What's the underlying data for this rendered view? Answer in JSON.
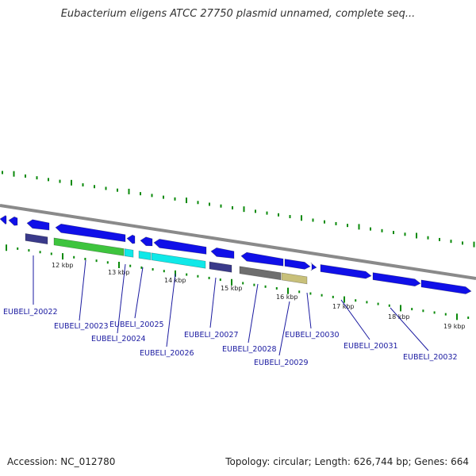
{
  "title": "Eubacterium eligens ATCC 27750 plasmid unnamed, complete seq...",
  "footer": {
    "accession_label": "Accession:",
    "accession": "NC_012780",
    "topology_label": "Topology:",
    "topology": "circular",
    "length_label": "Length:",
    "length": "626,744 bp",
    "genes_label": "Genes:",
    "genes": "664"
  },
  "colors": {
    "cds_blue": "#1010e8",
    "cds_navy": "#3a3a8a",
    "cds_green": "#3ec43e",
    "cds_cyan": "#10e8e8",
    "cds_gray": "#6e6e6e",
    "cds_khaki": "#c8c07a",
    "tick_green": "#0a8a0a",
    "backbone": "#8a8a8a",
    "label_blue": "#1a1aa0"
  },
  "kbp_markers": [
    "12 kbp",
    "13 kbp",
    "14 kbp",
    "15 kbp",
    "16 kbp",
    "17 kbp",
    "18 kbp",
    "19 kbp"
  ],
  "genes": [
    {
      "name": "EUBELI_20022",
      "strand": "minus",
      "color": "navy"
    },
    {
      "name": "EUBELI_20023",
      "strand": "minus",
      "color": "green"
    },
    {
      "name": "EUBELI_20024",
      "strand": "minus",
      "color": "cyan"
    },
    {
      "name": "EUBELI_20025",
      "strand": "minus",
      "color": "cyan"
    },
    {
      "name": "EUBELI_20026",
      "strand": "minus",
      "color": "cyan"
    },
    {
      "name": "EUBELI_20027",
      "strand": "minus",
      "color": "navy"
    },
    {
      "name": "EUBELI_20028",
      "strand": "minus",
      "color": "gray"
    },
    {
      "name": "EUBELI_20029",
      "strand": "minus",
      "color": "khaki"
    },
    {
      "name": "EUBELI_20030",
      "strand": "plus",
      "color": "blue"
    },
    {
      "name": "EUBELI_20031",
      "strand": "plus",
      "color": "blue"
    },
    {
      "name": "EUBELI_20032",
      "strand": "plus",
      "color": "blue"
    }
  ],
  "unlabeled_cds": [
    {
      "strand": "minus",
      "color": "blue"
    },
    {
      "strand": "minus",
      "color": "blue"
    },
    {
      "strand": "minus",
      "color": "blue"
    },
    {
      "strand": "minus",
      "color": "blue"
    },
    {
      "strand": "minus",
      "color": "blue"
    },
    {
      "strand": "minus",
      "color": "blue"
    },
    {
      "strand": "minus",
      "color": "blue"
    },
    {
      "strand": "minus",
      "color": "blue"
    },
    {
      "strand": "minus",
      "color": "blue"
    }
  ]
}
